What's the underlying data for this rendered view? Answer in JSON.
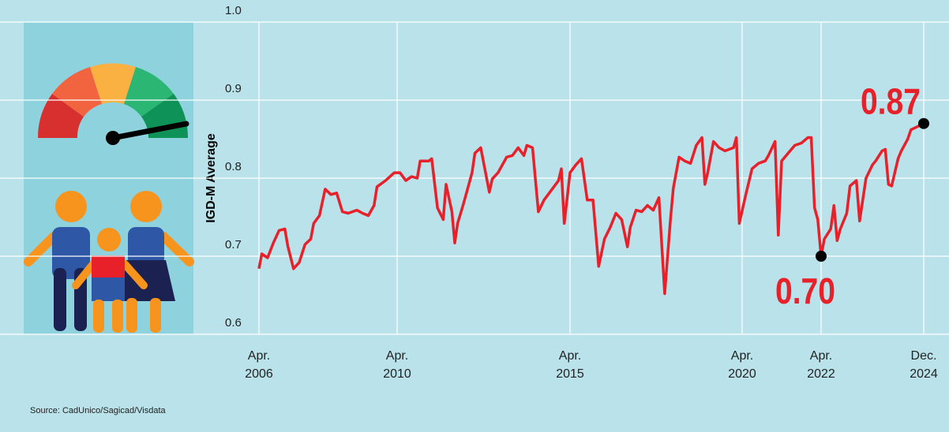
{
  "chart_data": {
    "type": "line",
    "y_label": "IGD-M Average",
    "source": "Source: CadUnico/Sagicad/Visdata",
    "color": "#e8202a",
    "x": [
      "2006-04",
      "2006-05",
      "2006-07",
      "2006-09",
      "2006-11",
      "2007-01",
      "2007-02",
      "2007-04",
      "2007-06",
      "2007-08",
      "2007-10",
      "2007-11",
      "2008-01",
      "2008-03",
      "2008-05",
      "2008-07",
      "2008-09",
      "2008-11",
      "2009-02",
      "2009-04",
      "2009-06",
      "2009-08",
      "2009-09",
      "2009-12",
      "2010-03",
      "2010-05",
      "2010-07",
      "2010-09",
      "2010-11",
      "2010-12",
      "2011-03",
      "2011-04",
      "2011-06",
      "2011-08",
      "2011-09",
      "2011-11",
      "2011-12",
      "2012-01",
      "2012-03",
      "2012-06",
      "2012-07",
      "2012-09",
      "2012-12",
      "2013-01",
      "2013-03",
      "2013-06",
      "2013-08",
      "2013-10",
      "2013-12",
      "2014-01",
      "2014-03",
      "2014-05",
      "2014-07",
      "2014-10",
      "2014-12",
      "2015-01",
      "2015-02",
      "2015-04",
      "2015-06",
      "2015-08",
      "2015-10",
      "2015-12",
      "2016-02",
      "2016-04",
      "2016-06",
      "2016-08",
      "2016-10",
      "2016-12",
      "2017-01",
      "2017-03",
      "2017-05",
      "2017-07",
      "2017-09",
      "2017-11",
      "2018-01",
      "2018-03",
      "2018-04",
      "2018-06",
      "2018-08",
      "2018-10",
      "2018-12",
      "2019-02",
      "2019-03",
      "2019-04",
      "2019-06",
      "2019-08",
      "2019-10",
      "2020-01",
      "2020-02",
      "2020-03",
      "2020-05",
      "2020-07",
      "2020-09",
      "2020-11",
      "2020-12",
      "2021-02",
      "2021-03",
      "2021-04",
      "2021-06",
      "2021-08",
      "2021-10",
      "2021-12",
      "2022-01",
      "2022-02",
      "2022-03",
      "2022-04",
      "2022-05",
      "2022-07",
      "2022-08",
      "2022-09",
      "2022-10",
      "2022-12",
      "2023-01",
      "2023-03",
      "2023-04",
      "2023-06",
      "2023-08",
      "2023-09",
      "2023-11",
      "2023-12",
      "2024-01",
      "2024-02",
      "2024-04",
      "2024-05",
      "2024-07",
      "2024-08",
      "2024-10",
      "2024-12"
    ],
    "values": [
      0.684,
      0.703,
      0.698,
      0.717,
      0.733,
      0.735,
      0.713,
      0.684,
      0.692,
      0.715,
      0.722,
      0.742,
      0.752,
      0.786,
      0.779,
      0.781,
      0.757,
      0.755,
      0.759,
      0.755,
      0.752,
      0.765,
      0.789,
      0.797,
      0.807,
      0.807,
      0.797,
      0.802,
      0.8,
      0.822,
      0.822,
      0.825,
      0.762,
      0.747,
      0.792,
      0.757,
      0.717,
      0.742,
      0.767,
      0.807,
      0.832,
      0.839,
      0.782,
      0.799,
      0.807,
      0.827,
      0.829,
      0.839,
      0.829,
      0.842,
      0.839,
      0.757,
      0.772,
      0.787,
      0.797,
      0.812,
      0.742,
      0.807,
      0.817,
      0.825,
      0.772,
      0.772,
      0.687,
      0.722,
      0.737,
      0.755,
      0.747,
      0.712,
      0.737,
      0.759,
      0.757,
      0.765,
      0.759,
      0.775,
      0.652,
      0.747,
      0.787,
      0.827,
      0.822,
      0.819,
      0.842,
      0.852,
      0.792,
      0.807,
      0.847,
      0.839,
      0.835,
      0.839,
      0.852,
      0.742,
      0.777,
      0.812,
      0.819,
      0.822,
      0.829,
      0.847,
      0.727,
      0.822,
      0.832,
      0.842,
      0.845,
      0.852,
      0.852,
      0.762,
      0.747,
      0.7,
      0.722,
      0.735,
      0.765,
      0.72,
      0.735,
      0.755,
      0.79,
      0.797,
      0.745,
      0.8,
      0.817,
      0.822,
      0.835,
      0.837,
      0.792,
      0.79,
      0.825,
      0.835,
      0.85,
      0.862,
      0.866,
      0.87
    ],
    "ylim": [
      0.6,
      1
    ],
    "yticks": [
      0.6,
      0.7,
      0.8,
      0.9,
      {
        "value": 1,
        "label": "1.0"
      }
    ],
    "xticks": [
      {
        "value": "2006-04",
        "label": "Apr. 2006"
      },
      {
        "value": "2010-04",
        "label": "Apr. 2010"
      },
      {
        "value": "2015-04",
        "label": "Apr. 2015"
      },
      {
        "value": "2020-04",
        "label": "Apr. 2020"
      },
      {
        "value": "2022-04",
        "label": "Apr. 2022"
      },
      {
        "value": "2024-12",
        "label": "Dec. 2024"
      }
    ],
    "annotations": [
      {
        "x": "2022-04",
        "value": 0.7,
        "label": "0.70"
      },
      {
        "x": "2024-12",
        "value": 0.87,
        "label": "0.87"
      }
    ],
    "grid": true
  }
}
